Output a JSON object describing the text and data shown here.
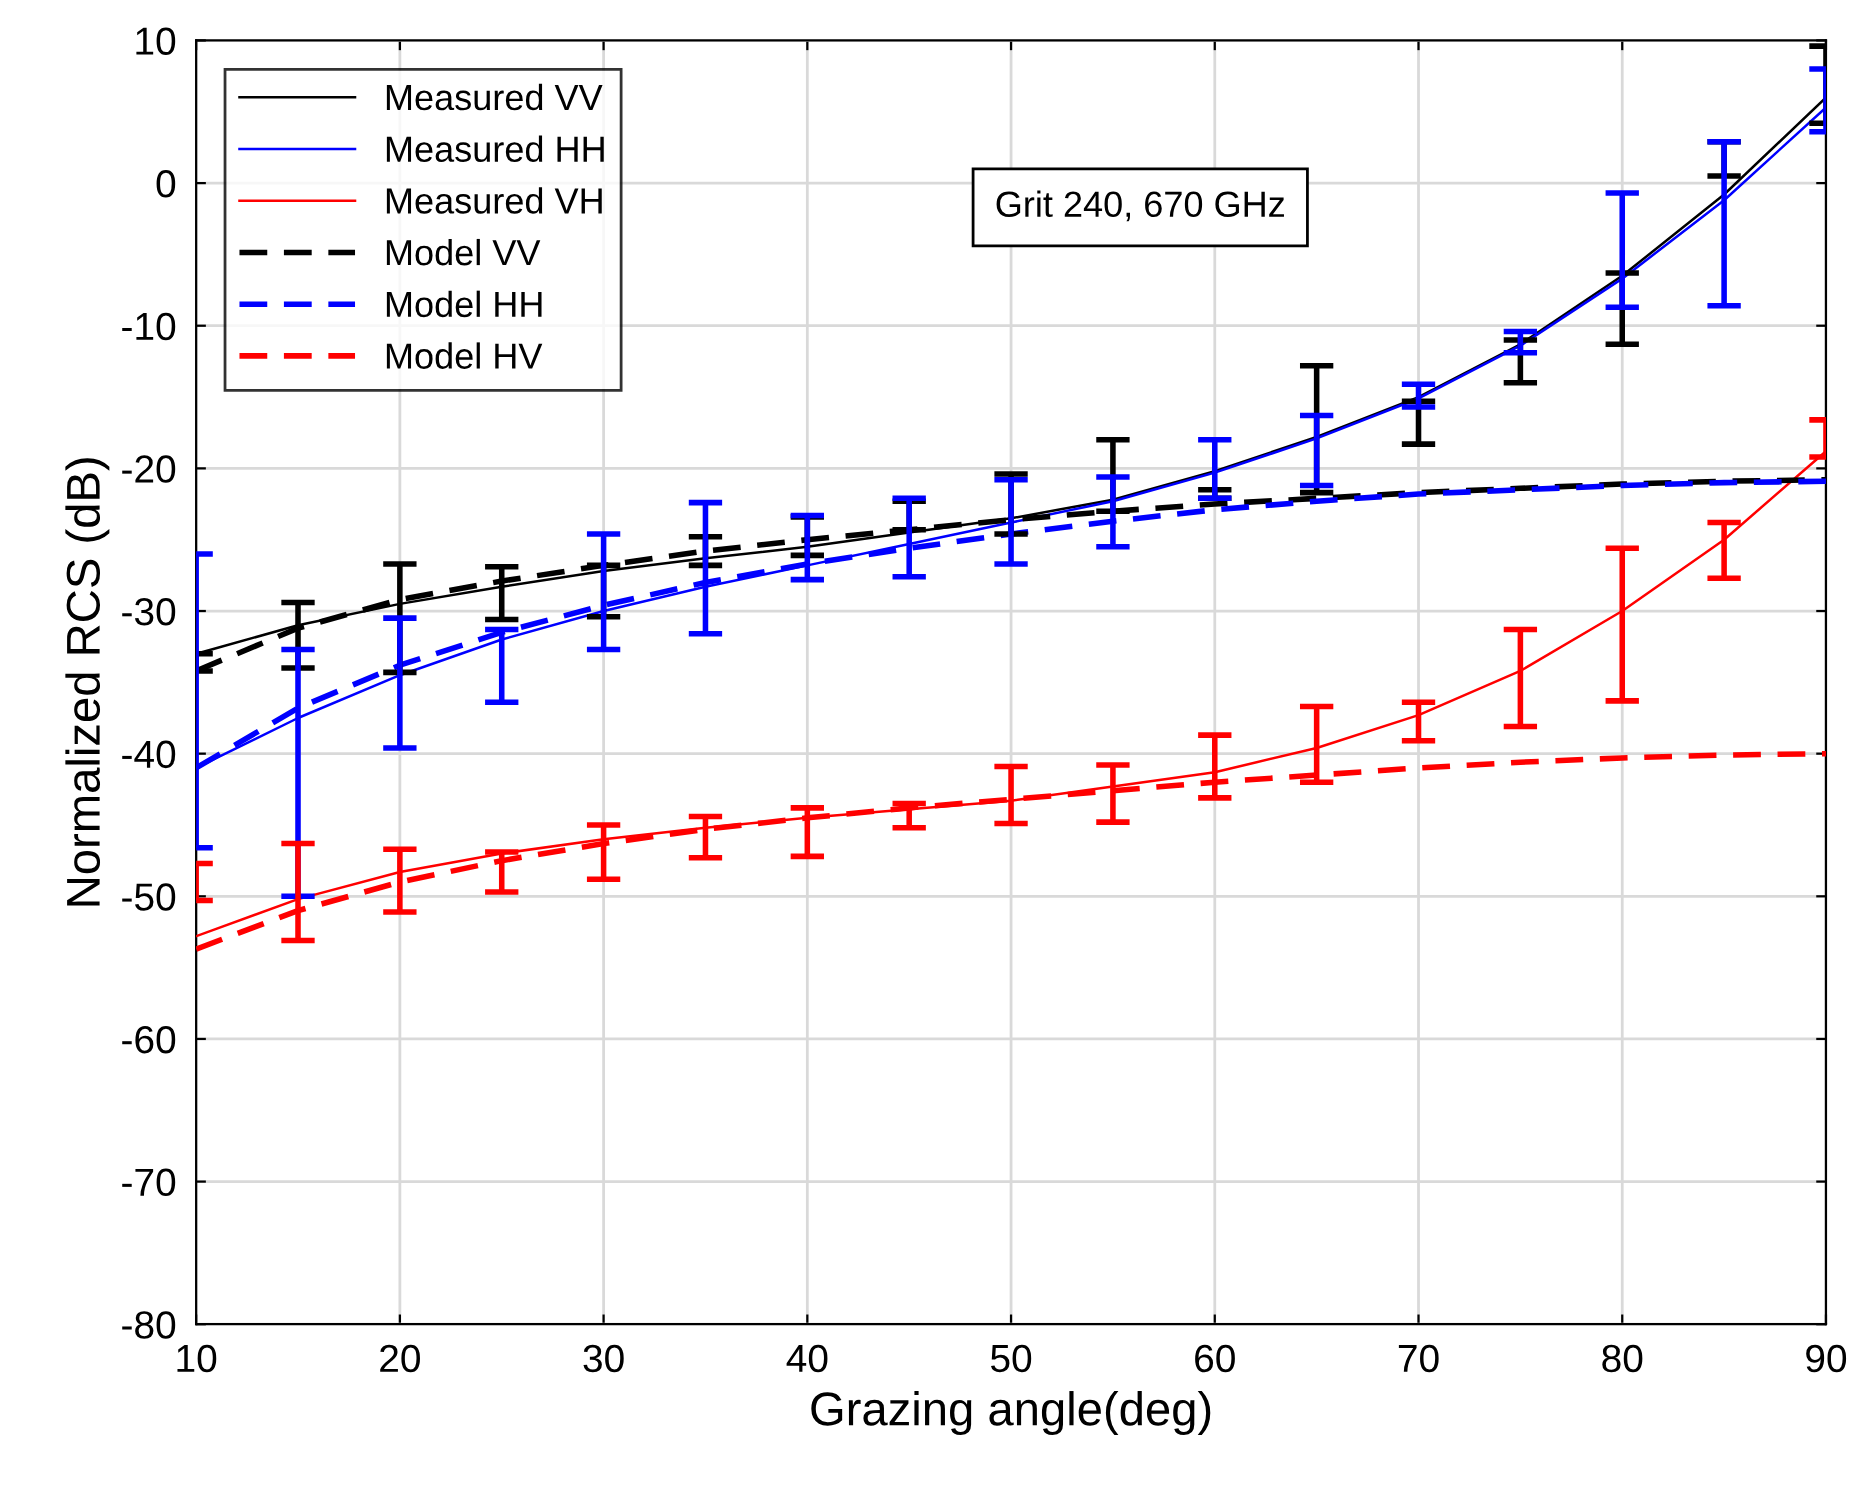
{
  "chart_data": {
    "type": "line",
    "xlabel": "Grazing angle(deg)",
    "ylabel": "Normalized RCS (dB)",
    "xlim": [
      10,
      90
    ],
    "ylim": [
      -80,
      10
    ],
    "xticks": [
      10,
      20,
      30,
      40,
      50,
      60,
      70,
      80,
      90
    ],
    "yticks": [
      -80,
      -70,
      -60,
      -50,
      -40,
      -30,
      -20,
      -10,
      0,
      10
    ],
    "grid": true,
    "legend": "top left",
    "annotations": [
      "Grit 240, 670 GHz"
    ],
    "x": [
      10,
      15,
      20,
      25,
      30,
      35,
      40,
      45,
      50,
      55,
      60,
      65,
      70,
      75,
      80,
      85,
      90
    ],
    "series": [
      {
        "name": "Measured VV",
        "color": "#000000",
        "line_style": "solid",
        "values": [
          -33,
          -31,
          -29.5,
          -28.3,
          -27.2,
          -26.3,
          -25.5,
          -24.5,
          -23.5,
          -22.2,
          -20.2,
          -17.8,
          -15,
          -11.3,
          -6.5,
          -0.8,
          6.0
        ],
        "errors": [
          [
            -34.2,
            -33.0
          ],
          [
            -34.0,
            -29.4
          ],
          [
            -34.3,
            -26.7
          ],
          [
            -30.6,
            -26.9
          ],
          [
            -30.4,
            -26.8
          ],
          [
            -26.8,
            -24.8
          ],
          [
            -26.1,
            -23.4
          ],
          [
            -24.3,
            -22.3
          ],
          [
            -24.6,
            -20.4
          ],
          [
            -23.0,
            -18.0
          ],
          [
            -22.1,
            -21.5
          ],
          [
            -21.7,
            -12.8
          ],
          [
            -18.3,
            -15.3
          ],
          [
            -14.0,
            -11.0
          ],
          [
            -11.3,
            -6.3
          ],
          [
            0.5,
            2.9
          ],
          [
            4.2,
            9.6
          ]
        ]
      },
      {
        "name": "Measured HH",
        "color": "#0000ff",
        "line_style": "solid",
        "values": [
          -41,
          -37.5,
          -34.5,
          -32,
          -30,
          -28.3,
          -26.8,
          -25.3,
          -23.8,
          -22.3,
          -20.3,
          -17.9,
          -15.1,
          -11.4,
          -6.7,
          -1.2,
          5.3
        ],
        "errors": [
          [
            -46.6,
            -26.0
          ],
          [
            -50.0,
            -32.7
          ],
          [
            -39.6,
            -30.5
          ],
          [
            -36.4,
            -31.3
          ],
          [
            -32.7,
            -24.6
          ],
          [
            -31.6,
            -22.4
          ],
          [
            -27.8,
            -23.3
          ],
          [
            -27.6,
            -22.1
          ],
          [
            -26.7,
            -20.8
          ],
          [
            -25.5,
            -20.6
          ],
          [
            -22.1,
            -18.0
          ],
          [
            -21.2,
            -16.3
          ],
          [
            -15.7,
            -14.1
          ],
          [
            -11.9,
            -10.4
          ],
          [
            -8.7,
            -0.7
          ],
          [
            -8.6,
            2.9
          ],
          [
            3.6,
            8.0
          ]
        ]
      },
      {
        "name": "Measured VH",
        "color": "#ff0000",
        "line_style": "solid",
        "values": [
          -52.8,
          -50.2,
          -48.3,
          -47.0,
          -46.0,
          -45.2,
          -44.5,
          -43.9,
          -43.3,
          -42.3,
          -41.3,
          -39.6,
          -37.3,
          -34.2,
          -30.0,
          -25.0,
          -18.8
        ],
        "errors": [
          [
            -50.3,
            -47.7
          ],
          [
            -53.1,
            -46.3
          ],
          [
            -51.1,
            -46.7
          ],
          [
            -49.7,
            -46.9
          ],
          [
            -48.8,
            -45.0
          ],
          [
            -47.3,
            -44.4
          ],
          [
            -47.2,
            -43.8
          ],
          [
            -45.2,
            -43.5
          ],
          [
            -44.9,
            -40.9
          ],
          [
            -44.8,
            -40.8
          ],
          [
            -43.1,
            -38.7
          ],
          [
            -42.0,
            -36.7
          ],
          [
            -39.1,
            -36.4
          ],
          [
            -38.1,
            -31.3
          ],
          [
            -36.3,
            -25.6
          ],
          [
            -27.7,
            -23.8
          ],
          [
            -19.2,
            -16.6
          ]
        ]
      },
      {
        "name": "Model VV",
        "color": "#000000",
        "line_style": "dashed",
        "values": [
          -34.2,
          -31.2,
          -29.2,
          -27.9,
          -26.8,
          -25.8,
          -25.0,
          -24.3,
          -23.6,
          -23.0,
          -22.5,
          -22.1,
          -21.7,
          -21.4,
          -21.1,
          -20.9,
          -20.8
        ]
      },
      {
        "name": "Model HH",
        "color": "#0000ff",
        "line_style": "dashed",
        "values": [
          -41,
          -36.8,
          -33.8,
          -31.5,
          -29.6,
          -28.0,
          -26.7,
          -25.6,
          -24.6,
          -23.7,
          -22.9,
          -22.3,
          -21.8,
          -21.5,
          -21.2,
          -21.0,
          -20.9
        ]
      },
      {
        "name": "Model HV",
        "color": "#ff0000",
        "line_style": "dashed",
        "values": [
          -53.7,
          -51,
          -49,
          -47.5,
          -46.3,
          -45.3,
          -44.5,
          -43.8,
          -43.2,
          -42.6,
          -42.0,
          -41.5,
          -41.0,
          -40.6,
          -40.3,
          -40.1,
          -40.0
        ]
      }
    ]
  }
}
